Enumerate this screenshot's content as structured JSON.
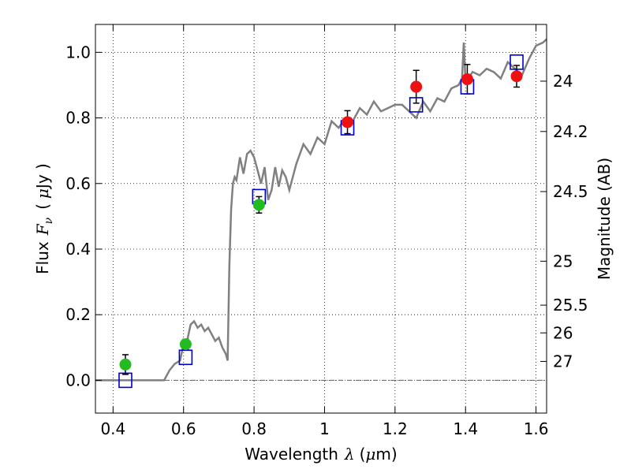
{
  "chart_data": {
    "type": "scatter",
    "title": "",
    "xlabel_parts": {
      "prefix": "Wavelength",
      "symbol": "λ",
      "unit_open": "(",
      "unit_sym": "μ",
      "unit_rest": "m)"
    },
    "ylabel_parts": {
      "prefix": "Flux",
      "symbol": "F",
      "sub": "ν",
      "unit_open": "(",
      "unit_sym": "μ",
      "unit_rest": "Jy )"
    },
    "y2label": "Magnitude (AB)",
    "xlim": [
      0.35,
      1.63
    ],
    "ylim": [
      -0.1,
      1.085
    ],
    "xticks": [
      {
        "value": 0.4,
        "label": "0.4"
      },
      {
        "value": 0.6,
        "label": "0.6"
      },
      {
        "value": 0.8,
        "label": "0.8"
      },
      {
        "value": 1.0,
        "label": "1"
      },
      {
        "value": 1.2,
        "label": "1.2"
      },
      {
        "value": 1.4,
        "label": "1.4"
      },
      {
        "value": 1.6,
        "label": "1.6"
      }
    ],
    "yticks": [
      {
        "value": 0.0,
        "label": "0.0"
      },
      {
        "value": 0.2,
        "label": "0.2"
      },
      {
        "value": 0.4,
        "label": "0.4"
      },
      {
        "value": 0.6,
        "label": "0.6"
      },
      {
        "value": 0.8,
        "label": "0.8"
      },
      {
        "value": 1.0,
        "label": "1.0"
      }
    ],
    "y2ticks": [
      {
        "value": 24,
        "label": "24"
      },
      {
        "value": 24.2,
        "label": "24.2"
      },
      {
        "value": 24.5,
        "label": "24.5"
      },
      {
        "value": 25,
        "label": "25"
      },
      {
        "value": 25.5,
        "label": "25.5"
      },
      {
        "value": 26,
        "label": "26"
      },
      {
        "value": 27,
        "label": "27"
      }
    ],
    "grid": true,
    "colors": {
      "model": "#808080",
      "optical": "#22bb22",
      "nir": "#ee1111",
      "model_band": "#0000cc",
      "errorbar": "#000000",
      "zero_line": "#606060"
    },
    "model_spectrum": {
      "x": [
        0.35,
        0.5,
        0.545,
        0.56,
        0.575,
        0.59,
        0.6,
        0.61,
        0.62,
        0.63,
        0.64,
        0.65,
        0.66,
        0.67,
        0.68,
        0.69,
        0.7,
        0.71,
        0.72,
        0.725,
        0.73,
        0.735,
        0.74,
        0.745,
        0.75,
        0.76,
        0.77,
        0.78,
        0.79,
        0.8,
        0.81,
        0.82,
        0.83,
        0.84,
        0.85,
        0.86,
        0.87,
        0.88,
        0.89,
        0.9,
        0.92,
        0.94,
        0.96,
        0.98,
        1.0,
        1.02,
        1.04,
        1.06,
        1.08,
        1.1,
        1.12,
        1.14,
        1.16,
        1.18,
        1.2,
        1.22,
        1.24,
        1.26,
        1.28,
        1.3,
        1.32,
        1.34,
        1.36,
        1.38,
        1.39,
        1.395,
        1.4,
        1.42,
        1.44,
        1.46,
        1.48,
        1.5,
        1.52,
        1.54,
        1.56,
        1.58,
        1.6,
        1.62,
        1.63
      ],
      "y": [
        0.0,
        0.0,
        0.0,
        0.03,
        0.05,
        0.06,
        0.11,
        0.12,
        0.17,
        0.18,
        0.16,
        0.17,
        0.15,
        0.16,
        0.14,
        0.12,
        0.13,
        0.1,
        0.08,
        0.06,
        0.35,
        0.52,
        0.6,
        0.62,
        0.61,
        0.68,
        0.63,
        0.69,
        0.7,
        0.68,
        0.64,
        0.6,
        0.65,
        0.55,
        0.58,
        0.65,
        0.59,
        0.64,
        0.62,
        0.58,
        0.66,
        0.72,
        0.69,
        0.74,
        0.72,
        0.79,
        0.77,
        0.8,
        0.79,
        0.83,
        0.81,
        0.85,
        0.82,
        0.83,
        0.84,
        0.84,
        0.82,
        0.8,
        0.85,
        0.82,
        0.86,
        0.85,
        0.89,
        0.9,
        0.92,
        1.03,
        0.91,
        0.94,
        0.93,
        0.95,
        0.94,
        0.92,
        0.97,
        0.95,
        0.93,
        0.98,
        1.02,
        1.03,
        1.04
      ]
    },
    "observed_optical": [
      {
        "x": 0.435,
        "y": 0.048,
        "err": 0.03
      },
      {
        "x": 0.606,
        "y": 0.11,
        "err": 0.015
      },
      {
        "x": 0.814,
        "y": 0.535,
        "err": 0.025
      }
    ],
    "observed_nir": [
      {
        "x": 1.065,
        "y": 0.787,
        "err": 0.035
      },
      {
        "x": 1.26,
        "y": 0.895,
        "err": 0.05
      },
      {
        "x": 1.405,
        "y": 0.918,
        "err": 0.045
      },
      {
        "x": 1.545,
        "y": 0.927,
        "err": 0.033
      }
    ],
    "model_bands": [
      {
        "x": 0.435,
        "y": 0.0
      },
      {
        "x": 0.606,
        "y": 0.07
      },
      {
        "x": 0.814,
        "y": 0.56
      },
      {
        "x": 1.065,
        "y": 0.77
      },
      {
        "x": 1.26,
        "y": 0.84
      },
      {
        "x": 1.405,
        "y": 0.895
      },
      {
        "x": 1.545,
        "y": 0.97
      }
    ]
  }
}
